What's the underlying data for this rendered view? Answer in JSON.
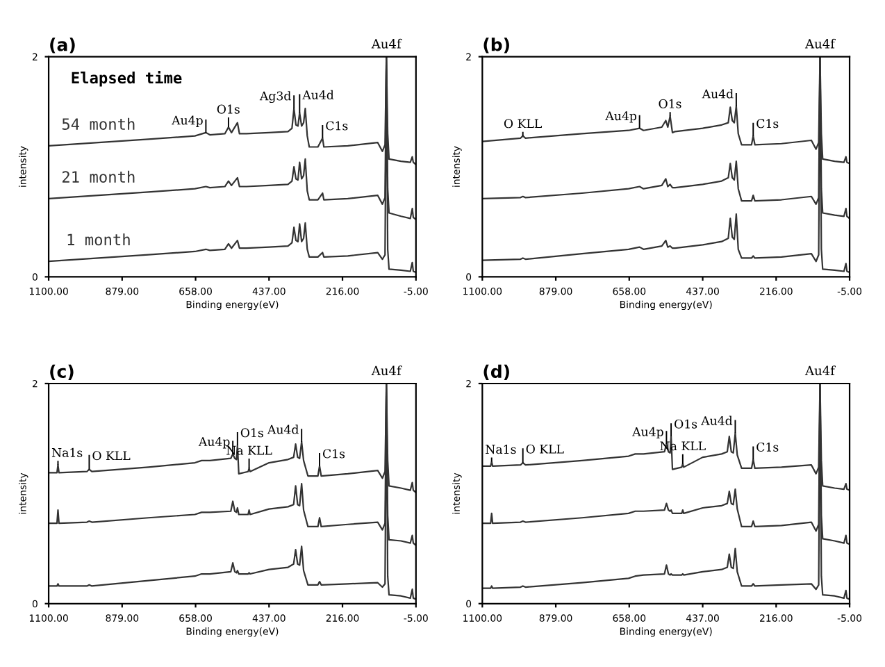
{
  "chart_data": [
    {
      "type": "line",
      "title": "(a)",
      "xlabel": "Binding energy(eV)",
      "ylabel": "intensity",
      "xlim": [
        1100,
        -5
      ],
      "ylim": [
        0,
        2
      ],
      "xticks": [
        {
          "value": 1100,
          "label": "1100.00"
        },
        {
          "value": 879,
          "label": "879.00"
        },
        {
          "value": 658,
          "label": "658.00"
        },
        {
          "value": 437,
          "label": "437.00"
        },
        {
          "value": 216,
          "label": "216.00"
        },
        {
          "value": -5,
          "label": "-5.00"
        }
      ],
      "yticks": [
        0,
        2
      ],
      "grid": false,
      "legend": false,
      "x": [
        1100,
        950,
        800,
        660,
        627,
        615,
        570,
        559,
        550,
        532,
        526,
        505,
        437,
        380,
        368,
        362,
        356,
        350,
        345,
        339,
        333,
        328,
        322,
        316,
        290,
        276,
        272,
        200,
        110,
        96,
        88,
        84,
        80,
        76,
        40,
        12,
        6,
        3,
        -5
      ],
      "series": [
        {
          "name": "54 month",
          "color": "#333333",
          "values": [
            1.19,
            1.22,
            1.25,
            1.28,
            1.31,
            1.29,
            1.3,
            1.36,
            1.31,
            1.4,
            1.3,
            1.3,
            1.31,
            1.32,
            1.35,
            1.53,
            1.38,
            1.37,
            1.49,
            1.37,
            1.4,
            1.53,
            1.28,
            1.18,
            1.18,
            1.26,
            1.18,
            1.19,
            1.22,
            1.14,
            1.2,
            2.0,
            1.3,
            1.07,
            1.05,
            1.04,
            1.09,
            1.04,
            1.02
          ]
        },
        {
          "name": "21 month",
          "color": "#333333",
          "values": [
            0.71,
            0.74,
            0.77,
            0.8,
            0.82,
            0.81,
            0.82,
            0.87,
            0.83,
            0.9,
            0.82,
            0.82,
            0.83,
            0.84,
            0.87,
            1.0,
            0.89,
            0.88,
            1.04,
            0.89,
            0.92,
            1.07,
            0.78,
            0.7,
            0.7,
            0.76,
            0.7,
            0.71,
            0.74,
            0.66,
            0.72,
            2.0,
            0.8,
            0.58,
            0.55,
            0.53,
            0.62,
            0.54,
            0.52
          ]
        },
        {
          "name": "1 month",
          "color": "#333333",
          "values": [
            0.14,
            0.17,
            0.2,
            0.23,
            0.25,
            0.24,
            0.25,
            0.3,
            0.26,
            0.33,
            0.26,
            0.26,
            0.27,
            0.28,
            0.31,
            0.45,
            0.33,
            0.32,
            0.48,
            0.32,
            0.35,
            0.49,
            0.25,
            0.18,
            0.18,
            0.22,
            0.18,
            0.19,
            0.22,
            0.16,
            0.2,
            2.0,
            0.25,
            0.07,
            0.06,
            0.05,
            0.13,
            0.05,
            0.04
          ]
        }
      ],
      "annotations": [
        "Elapsed time",
        {
          "text": "Au4p",
          "x": 627,
          "y": 1.31
        },
        {
          "text": "O1s",
          "x": 559,
          "y": 1.36
        },
        {
          "text": "Ag3d",
          "x": 362,
          "y": 1.53
        },
        {
          "text": "Au4d",
          "x": 345,
          "y": 1.49
        },
        {
          "text": "C1s",
          "x": 276,
          "y": 1.26
        },
        {
          "text": "Au4f",
          "x": 84,
          "y": 2.0
        }
      ]
    },
    {
      "type": "line",
      "title": "(b)",
      "xlabel": "Binding energy(eV)",
      "ylabel": "intensity",
      "xlim": [
        1100,
        -5
      ],
      "ylim": [
        0,
        2
      ],
      "xticks": [
        {
          "value": 1100,
          "label": "1100.00"
        },
        {
          "value": 879,
          "label": "879.00"
        },
        {
          "value": 658,
          "label": "658.00"
        },
        {
          "value": 437,
          "label": "437.00"
        },
        {
          "value": 216,
          "label": "216.00"
        },
        {
          "value": -5,
          "label": "-5.00"
        }
      ],
      "yticks": [
        0,
        2
      ],
      "grid": false,
      "legend": false,
      "x": [
        1100,
        985,
        978,
        970,
        800,
        660,
        627,
        615,
        560,
        548,
        542,
        535,
        528,
        520,
        437,
        380,
        360,
        354,
        348,
        342,
        336,
        330,
        320,
        290,
        285,
        280,
        200,
        110,
        96,
        88,
        84,
        80,
        76,
        40,
        12,
        6,
        3,
        -5
      ],
      "series": [
        {
          "color": "#333333",
          "values": [
            1.23,
            1.26,
            1.28,
            1.26,
            1.3,
            1.33,
            1.35,
            1.33,
            1.36,
            1.42,
            1.36,
            1.46,
            1.31,
            1.32,
            1.35,
            1.38,
            1.4,
            1.54,
            1.42,
            1.4,
            1.55,
            1.3,
            1.2,
            1.2,
            1.28,
            1.2,
            1.21,
            1.24,
            1.16,
            1.22,
            2.0,
            1.3,
            1.07,
            1.05,
            1.04,
            1.09,
            1.04,
            1.03
          ]
        },
        {
          "color": "#333333",
          "values": [
            0.71,
            0.72,
            0.73,
            0.72,
            0.76,
            0.8,
            0.82,
            0.8,
            0.83,
            0.89,
            0.82,
            0.84,
            0.81,
            0.81,
            0.84,
            0.87,
            0.9,
            1.03,
            0.9,
            0.88,
            1.05,
            0.8,
            0.69,
            0.69,
            0.74,
            0.69,
            0.7,
            0.73,
            0.66,
            0.72,
            2.0,
            0.8,
            0.58,
            0.56,
            0.55,
            0.62,
            0.55,
            0.53
          ]
        },
        {
          "color": "#333333",
          "values": [
            0.15,
            0.16,
            0.17,
            0.16,
            0.21,
            0.25,
            0.27,
            0.25,
            0.28,
            0.33,
            0.27,
            0.28,
            0.26,
            0.26,
            0.29,
            0.32,
            0.35,
            0.53,
            0.36,
            0.34,
            0.57,
            0.25,
            0.17,
            0.17,
            0.19,
            0.17,
            0.18,
            0.21,
            0.14,
            0.2,
            2.0,
            0.25,
            0.07,
            0.06,
            0.05,
            0.12,
            0.05,
            0.04
          ]
        }
      ],
      "annotations": [
        {
          "text": "O KLL",
          "x": 978,
          "y": 1.28
        },
        {
          "text": "Au4p",
          "x": 627,
          "y": 1.35
        },
        {
          "text": "O1s",
          "x": 535,
          "y": 1.46
        },
        {
          "text": "Au4d",
          "x": 336,
          "y": 1.55
        },
        {
          "text": "C1s",
          "x": 285,
          "y": 1.28
        },
        {
          "text": "Au4f",
          "x": 84,
          "y": 2.0
        }
      ]
    },
    {
      "type": "line",
      "title": "(c)",
      "xlabel": "Binding energy(eV)",
      "ylabel": "intensity",
      "xlim": [
        1100,
        -5
      ],
      "ylim": [
        0,
        2
      ],
      "xticks": [
        {
          "value": 1100,
          "label": "1100.00"
        },
        {
          "value": 879,
          "label": "879.00"
        },
        {
          "value": 658,
          "label": "658.00"
        },
        {
          "value": 437,
          "label": "437.00"
        },
        {
          "value": 216,
          "label": "216.00"
        },
        {
          "value": -5,
          "label": "-5.00"
        }
      ],
      "yticks": [
        0,
        2
      ],
      "grid": false,
      "legend": false,
      "x": [
        1100,
        1075,
        1072,
        1069,
        985,
        978,
        970,
        800,
        660,
        640,
        615,
        552,
        546,
        540,
        535,
        532,
        528,
        500,
        497,
        494,
        437,
        380,
        363,
        357,
        351,
        345,
        339,
        333,
        320,
        290,
        285,
        280,
        200,
        110,
        96,
        88,
        84,
        80,
        76,
        40,
        12,
        6,
        3,
        -5
      ],
      "series": [
        {
          "color": "#333333",
          "values": [
            1.19,
            1.19,
            1.26,
            1.19,
            1.2,
            1.22,
            1.2,
            1.24,
            1.28,
            1.3,
            1.3,
            1.32,
            1.36,
            1.32,
            1.31,
            1.44,
            1.18,
            1.2,
            1.23,
            1.2,
            1.28,
            1.31,
            1.33,
            1.45,
            1.33,
            1.32,
            1.47,
            1.3,
            1.16,
            1.16,
            1.25,
            1.16,
            1.18,
            1.21,
            1.14,
            1.2,
            2.0,
            1.3,
            1.07,
            1.05,
            1.03,
            1.1,
            1.03,
            1.01
          ]
        },
        {
          "color": "#333333",
          "values": [
            0.73,
            0.73,
            0.85,
            0.73,
            0.74,
            0.75,
            0.74,
            0.78,
            0.81,
            0.83,
            0.83,
            0.84,
            0.93,
            0.84,
            0.83,
            0.87,
            0.81,
            0.81,
            0.85,
            0.81,
            0.86,
            0.88,
            0.9,
            1.07,
            0.9,
            0.89,
            1.09,
            0.85,
            0.7,
            0.7,
            0.78,
            0.7,
            0.72,
            0.74,
            0.67,
            0.73,
            2.0,
            0.8,
            0.58,
            0.57,
            0.55,
            0.62,
            0.55,
            0.53
          ]
        },
        {
          "color": "#333333",
          "values": [
            0.16,
            0.16,
            0.18,
            0.16,
            0.16,
            0.17,
            0.16,
            0.21,
            0.25,
            0.27,
            0.27,
            0.29,
            0.37,
            0.29,
            0.28,
            0.3,
            0.27,
            0.27,
            0.28,
            0.27,
            0.31,
            0.33,
            0.36,
            0.49,
            0.36,
            0.35,
            0.52,
            0.3,
            0.17,
            0.17,
            0.2,
            0.17,
            0.18,
            0.19,
            0.15,
            0.18,
            2.0,
            0.25,
            0.08,
            0.07,
            0.05,
            0.13,
            0.05,
            0.04
          ]
        }
      ],
      "annotations": [
        {
          "text": "Na1s",
          "x": 1072,
          "y": 1.26
        },
        {
          "text": "O KLL",
          "x": 978,
          "y": 1.22
        },
        {
          "text": "Au4p",
          "x": 546,
          "y": 1.36
        },
        {
          "text": "O1s",
          "x": 532,
          "y": 1.44
        },
        {
          "text": "Na KLL",
          "x": 497,
          "y": 1.23
        },
        {
          "text": "Au4d",
          "x": 339,
          "y": 1.47
        },
        {
          "text": "C1s",
          "x": 285,
          "y": 1.25
        },
        {
          "text": "Au4f",
          "x": 84,
          "y": 2.0
        }
      ]
    },
    {
      "type": "line",
      "title": "(d)",
      "xlabel": "Binding energy(eV)",
      "ylabel": "intensity",
      "xlim": [
        1100,
        -5
      ],
      "ylim": [
        0,
        2
      ],
      "xticks": [
        {
          "value": 1100,
          "label": "1100.00"
        },
        {
          "value": 879,
          "label": "879.00"
        },
        {
          "value": 658,
          "label": "658.00"
        },
        {
          "value": 437,
          "label": "437.00"
        },
        {
          "value": 216,
          "label": "216.00"
        },
        {
          "value": -5,
          "label": "-5.00"
        }
      ],
      "yticks": [
        0,
        2
      ],
      "grid": false,
      "legend": false,
      "x": [
        1100,
        1075,
        1072,
        1069,
        985,
        978,
        970,
        800,
        660,
        640,
        615,
        552,
        546,
        540,
        535,
        532,
        528,
        500,
        497,
        494,
        437,
        380,
        363,
        357,
        351,
        345,
        339,
        333,
        320,
        290,
        285,
        280,
        200,
        110,
        96,
        88,
        84,
        80,
        76,
        40,
        12,
        6,
        3,
        -5
      ],
      "series": [
        {
          "color": "#333333",
          "values": [
            1.25,
            1.25,
            1.29,
            1.25,
            1.26,
            1.28,
            1.26,
            1.3,
            1.34,
            1.36,
            1.36,
            1.38,
            1.45,
            1.38,
            1.37,
            1.52,
            1.22,
            1.24,
            1.27,
            1.24,
            1.33,
            1.36,
            1.38,
            1.52,
            1.38,
            1.37,
            1.55,
            1.35,
            1.23,
            1.23,
            1.31,
            1.23,
            1.24,
            1.26,
            1.18,
            1.24,
            2.0,
            1.3,
            1.07,
            1.05,
            1.04,
            1.09,
            1.04,
            1.03
          ]
        },
        {
          "color": "#333333",
          "values": [
            0.73,
            0.73,
            0.82,
            0.73,
            0.74,
            0.75,
            0.74,
            0.78,
            0.82,
            0.84,
            0.84,
            0.85,
            0.91,
            0.85,
            0.84,
            0.85,
            0.82,
            0.82,
            0.85,
            0.82,
            0.87,
            0.89,
            0.91,
            1.02,
            0.91,
            0.9,
            1.04,
            0.86,
            0.7,
            0.7,
            0.75,
            0.7,
            0.71,
            0.74,
            0.66,
            0.72,
            2.0,
            0.8,
            0.59,
            0.57,
            0.55,
            0.62,
            0.55,
            0.54
          ]
        },
        {
          "color": "#333333",
          "values": [
            0.14,
            0.14,
            0.16,
            0.14,
            0.15,
            0.16,
            0.15,
            0.19,
            0.23,
            0.25,
            0.26,
            0.27,
            0.35,
            0.27,
            0.26,
            0.27,
            0.26,
            0.26,
            0.27,
            0.26,
            0.29,
            0.31,
            0.33,
            0.45,
            0.33,
            0.32,
            0.5,
            0.29,
            0.16,
            0.16,
            0.18,
            0.16,
            0.17,
            0.18,
            0.13,
            0.17,
            2.0,
            0.25,
            0.08,
            0.07,
            0.05,
            0.12,
            0.05,
            0.04
          ]
        }
      ],
      "annotations": [
        {
          "text": "Na1s",
          "x": 1072,
          "y": 1.29
        },
        {
          "text": "O KLL",
          "x": 978,
          "y": 1.28
        },
        {
          "text": "Au4p",
          "x": 546,
          "y": 1.45
        },
        {
          "text": "O1s",
          "x": 532,
          "y": 1.52
        },
        {
          "text": "Na KLL",
          "x": 497,
          "y": 1.27
        },
        {
          "text": "Au4d",
          "x": 339,
          "y": 1.55
        },
        {
          "text": "C1s",
          "x": 285,
          "y": 1.31
        },
        {
          "text": "Au4f",
          "x": 84,
          "y": 2.0
        }
      ]
    }
  ]
}
